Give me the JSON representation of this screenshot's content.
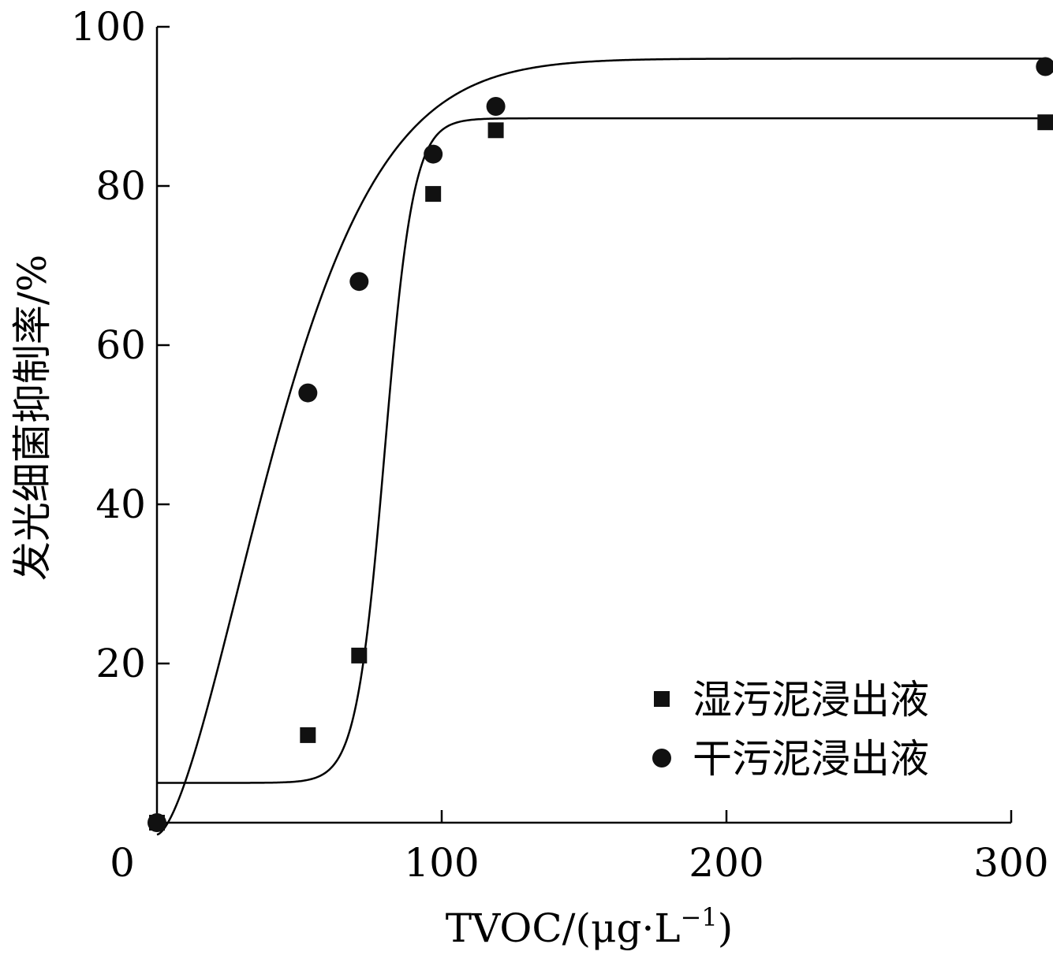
{
  "chart_data": {
    "type": "scatter",
    "xlabel": "TVOC/(μg·L",
    "xlabel_sup": "−1",
    "xlabel_close": ")",
    "ylabel": "发光细菌抑制率/%",
    "xlim": [
      0,
      300
    ],
    "ylim": [
      0,
      100
    ],
    "x_ticks": [
      0,
      100,
      200,
      300
    ],
    "y_ticks": [
      20,
      40,
      60,
      80,
      100
    ],
    "grid": false,
    "legend_position": "bottom-right",
    "series": [
      {
        "name": "湿污泥浸出液",
        "marker": "square",
        "color": "#111111",
        "points": [
          {
            "x": 0,
            "y": 0
          },
          {
            "x": 53,
            "y": 11
          },
          {
            "x": 71,
            "y": 21
          },
          {
            "x": 97,
            "y": 79
          },
          {
            "x": 119,
            "y": 87
          },
          {
            "x": 312,
            "y": 88
          }
        ]
      },
      {
        "name": "干污泥浸出液",
        "marker": "circle",
        "color": "#111111",
        "points": [
          {
            "x": 0,
            "y": 0
          },
          {
            "x": 53,
            "y": 54
          },
          {
            "x": 71,
            "y": 68
          },
          {
            "x": 97,
            "y": 84
          },
          {
            "x": 119,
            "y": 90
          },
          {
            "x": 312,
            "y": 95
          }
        ]
      }
    ]
  }
}
